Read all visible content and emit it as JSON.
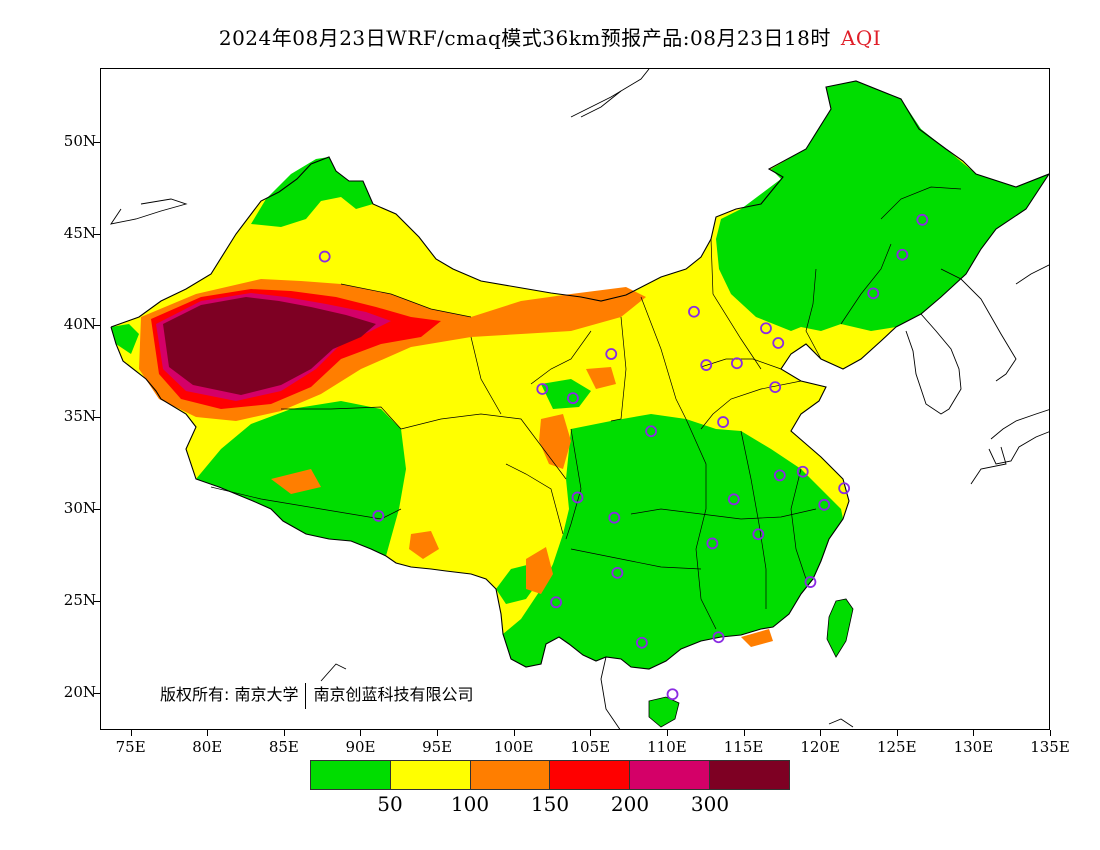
{
  "title": {
    "main": "2024年08月23日WRF/cmaq模式36km预报产品:08月23日18时",
    "variable": "AQI"
  },
  "axes": {
    "lat_labels": [
      "50N",
      "45N",
      "40N",
      "35N",
      "30N",
      "25N",
      "20N"
    ],
    "lon_labels": [
      "75E",
      "80E",
      "85E",
      "90E",
      "95E",
      "100E",
      "105E",
      "110E",
      "115E",
      "120E",
      "125E",
      "130E",
      "135E"
    ]
  },
  "credit": {
    "prefix": "版权所有:",
    "org1": "南京大学",
    "org2": "南京创蓝科技有限公司"
  },
  "legend": {
    "colors": [
      "#00dd00",
      "#ffff00",
      "#ff7e00",
      "#ff0000",
      "#d40068",
      "#7e0023"
    ],
    "labels": [
      "50",
      "100",
      "150",
      "200",
      "300"
    ]
  },
  "map": {
    "extent": {
      "lon": [
        73,
        135
      ],
      "lat": [
        18,
        54
      ]
    },
    "colors": {
      "good": "#00dd00",
      "moderate": "#ffff00",
      "usg": "#ff7e00",
      "unhealthy": "#ff0000",
      "very_unhealthy": "#d40068",
      "hazardous": "#7e0023",
      "station_marker": "#8a2be2"
    },
    "stations": [
      {
        "lon": 87.6,
        "lat": 43.8
      },
      {
        "lon": 126.6,
        "lat": 45.8
      },
      {
        "lon": 125.3,
        "lat": 43.9
      },
      {
        "lon": 123.4,
        "lat": 41.8
      },
      {
        "lon": 111.7,
        "lat": 40.8
      },
      {
        "lon": 116.4,
        "lat": 39.9
      },
      {
        "lon": 117.2,
        "lat": 39.1
      },
      {
        "lon": 106.3,
        "lat": 38.5
      },
      {
        "lon": 112.5,
        "lat": 37.9
      },
      {
        "lon": 114.5,
        "lat": 38.0
      },
      {
        "lon": 101.8,
        "lat": 36.6
      },
      {
        "lon": 103.8,
        "lat": 36.1
      },
      {
        "lon": 117.0,
        "lat": 36.7
      },
      {
        "lon": 108.9,
        "lat": 34.3
      },
      {
        "lon": 113.6,
        "lat": 34.8
      },
      {
        "lon": 117.3,
        "lat": 31.9
      },
      {
        "lon": 118.8,
        "lat": 32.1
      },
      {
        "lon": 121.5,
        "lat": 31.2
      },
      {
        "lon": 120.2,
        "lat": 30.3
      },
      {
        "lon": 114.3,
        "lat": 30.6
      },
      {
        "lon": 104.1,
        "lat": 30.7
      },
      {
        "lon": 106.5,
        "lat": 29.6
      },
      {
        "lon": 91.1,
        "lat": 29.7
      },
      {
        "lon": 112.9,
        "lat": 28.2
      },
      {
        "lon": 115.9,
        "lat": 28.7
      },
      {
        "lon": 106.7,
        "lat": 26.6
      },
      {
        "lon": 119.3,
        "lat": 26.1
      },
      {
        "lon": 102.7,
        "lat": 25.0
      },
      {
        "lon": 108.3,
        "lat": 22.8
      },
      {
        "lon": 113.3,
        "lat": 23.1
      },
      {
        "lon": 110.3,
        "lat": 20.0
      }
    ]
  }
}
